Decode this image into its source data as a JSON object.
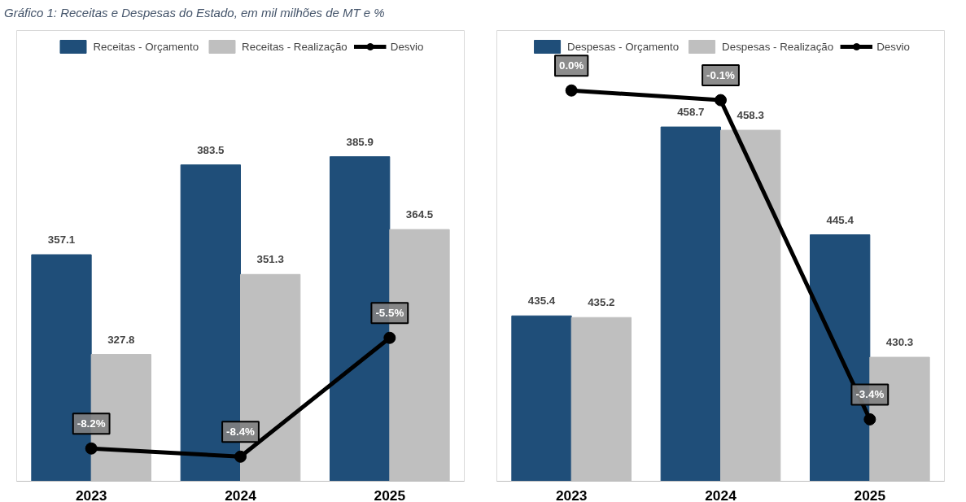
{
  "chart_data": [
    {
      "type": "bar",
      "title": "Gráfico 1: Receitas e Despesas do Estado, em mil milhões de MT e %",
      "categories": [
        "2023",
        "2024",
        "2025"
      ],
      "ylim": [
        290.5,
        423
      ],
      "y2lim": [
        -9,
        2
      ],
      "tick_labels": "x",
      "grid": false,
      "legend": "top",
      "series": [
        {
          "name": "Receitas - Orçamento",
          "color": "#1f4e79",
          "values": [
            357.1,
            383.5,
            385.9
          ],
          "value_labels": [
            "357.1",
            "383.5",
            "385.9"
          ]
        },
        {
          "name": "Receitas - Realização",
          "color": "#bfbfbf",
          "values": [
            327.8,
            351.3,
            364.5
          ],
          "value_labels": [
            "327.8",
            "351.3",
            "364.5"
          ]
        },
        {
          "name": "Desvio",
          "type": "line",
          "axis": "y2",
          "color": "#000000",
          "marker": "circle",
          "values": [
            -8.2,
            -8.4,
            -5.5
          ],
          "value_labels": [
            "-8.2%",
            "-8.4%",
            "-5.5%"
          ]
        }
      ]
    },
    {
      "type": "bar",
      "categories": [
        "2023",
        "2024",
        "2025"
      ],
      "ylim": [
        415,
        470.6
      ],
      "y2lim": [
        -4.04,
        0.62
      ],
      "tick_labels": "x",
      "grid": false,
      "legend": "top",
      "series": [
        {
          "name": "Despesas - Orçamento",
          "color": "#1f4e79",
          "values": [
            435.4,
            458.7,
            445.4
          ],
          "value_labels": [
            "435.4",
            "458.7",
            "445.4"
          ]
        },
        {
          "name": "Despesas - Realização",
          "color": "#bfbfbf",
          "values": [
            435.2,
            458.3,
            430.3
          ],
          "value_labels": [
            "435.2",
            "458.3",
            "430.3"
          ]
        },
        {
          "name": "Desvio",
          "type": "line",
          "axis": "y2",
          "color": "#000000",
          "marker": "circle",
          "values": [
            0.0,
            -0.1,
            -3.4
          ],
          "value_labels": [
            "0.0%",
            "-0.1%",
            "-3.4%"
          ]
        }
      ]
    }
  ]
}
